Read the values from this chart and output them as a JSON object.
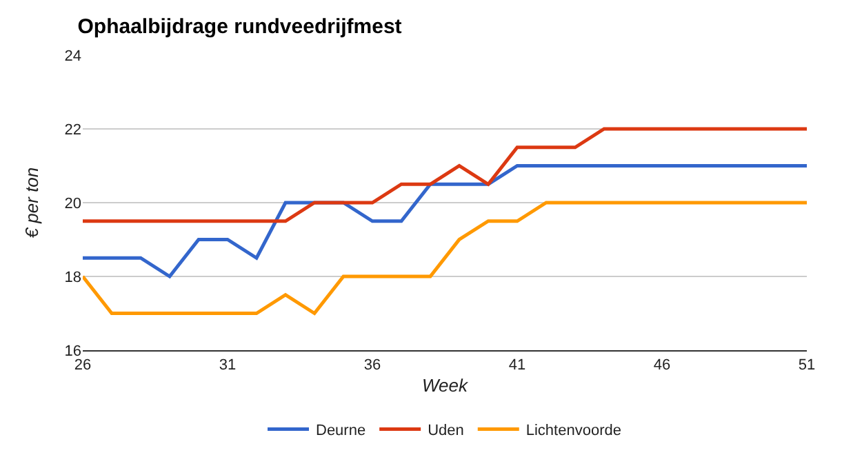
{
  "chart_data": {
    "type": "line",
    "title": "Ophaalbijdrage rundveedrijfmest",
    "xlabel": "Week",
    "ylabel": "€ per ton",
    "x": [
      26,
      27,
      28,
      29,
      30,
      31,
      32,
      33,
      34,
      35,
      36,
      37,
      38,
      39,
      40,
      41,
      42,
      43,
      44,
      45,
      46,
      47,
      48,
      49,
      50,
      51
    ],
    "series": [
      {
        "name": "Deurne",
        "color": "#3366cc",
        "values": [
          18.5,
          18.5,
          18.5,
          18,
          19,
          19,
          18.5,
          20,
          20,
          20,
          19.5,
          19.5,
          20.5,
          20.5,
          20.5,
          21,
          21,
          21,
          21,
          21,
          21,
          21,
          21,
          21,
          21,
          21
        ]
      },
      {
        "name": "Uden",
        "color": "#dc3912",
        "values": [
          19.5,
          19.5,
          19.5,
          19.5,
          19.5,
          19.5,
          19.5,
          19.5,
          20,
          20,
          20,
          20.5,
          20.5,
          21,
          20.5,
          21.5,
          21.5,
          21.5,
          22,
          22,
          22,
          22,
          22,
          22,
          22,
          22
        ]
      },
      {
        "name": "Lichtenvoorde",
        "color": "#ff9900",
        "values": [
          18,
          17,
          17,
          17,
          17,
          17,
          17,
          17.5,
          17,
          18,
          18,
          18,
          18,
          19,
          19.5,
          19.5,
          20,
          20,
          20,
          20,
          20,
          20,
          20,
          20,
          20,
          20
        ]
      }
    ],
    "xlim": [
      26,
      51
    ],
    "xticks": [
      26,
      31,
      36,
      41,
      46,
      51
    ],
    "ylim": [
      16,
      24
    ],
    "yticks": [
      16,
      18,
      20,
      22,
      24
    ],
    "grid": "y",
    "legend": "bottom",
    "marker": "none",
    "line_style": "solid"
  }
}
